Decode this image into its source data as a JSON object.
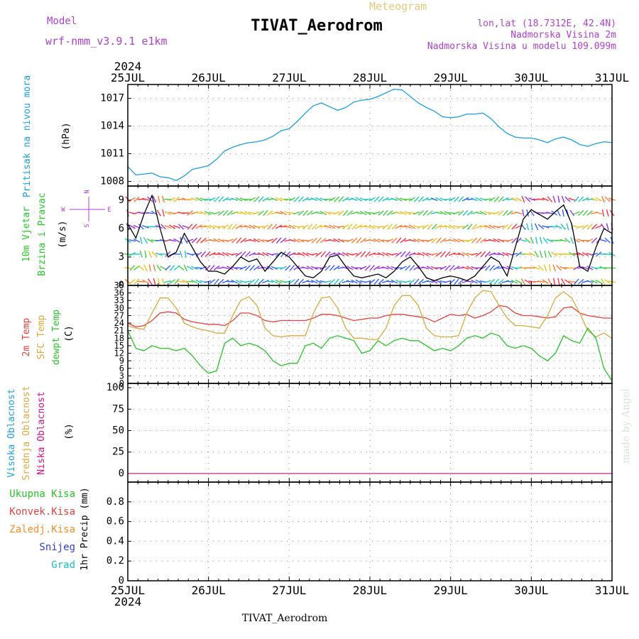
{
  "header": {
    "model_label": "Model",
    "model_name": "wrf-nmm_v3.9.1  e1km",
    "meteogram_label": "Meteogram",
    "station": "TIVAT_Aerodrom",
    "lonlat": "lon,lat (18.7312E, 42.4N)",
    "elevation": "Nadmorska Visina 2m",
    "model_elevation": "Nadmorska Visina u modelu 109.099m",
    "year": "2024",
    "footer_station": "TIVAT_Aerodrom",
    "credit": "made by Angel"
  },
  "colors": {
    "pressure": "#1e9fe0",
    "temp2m": "#e8413c",
    "sfc": "#dca83c",
    "dewpt": "#27c427",
    "wind_label": "#22cc22",
    "wind_dir": "#b040d0",
    "high_cloud": "#1ea0e0",
    "mid_cloud": "#dca83c",
    "low_cloud": "#d0108a",
    "precip_total": "#27c427",
    "precip_conv": "#e8413c",
    "precip_frz": "#ff8c28",
    "precip_snow": "#3040e0",
    "precip_grad": "#20c0c0"
  },
  "chart_data": [
    {
      "type": "line",
      "panel": "pressure",
      "ylabel_parts": [
        "Pritisak na nivou mora",
        "(hPa)"
      ],
      "x_categories": [
        "25JUL",
        "26JUL",
        "27JUL",
        "28JUL",
        "29JUL",
        "30JUL",
        "31JUL"
      ],
      "ylim": [
        1007.5,
        1018.5
      ],
      "yticks": [
        1008,
        1011,
        1014,
        1017
      ],
      "grid": true,
      "series": [
        {
          "x": [
            0,
            0.1,
            0.2,
            0.3,
            0.4,
            0.5,
            0.6,
            0.7,
            0.8,
            0.9,
            1.0,
            1.1,
            1.2,
            1.3,
            1.4,
            1.5,
            1.6,
            1.7,
            1.8,
            1.9,
            2.0,
            2.1,
            2.2,
            2.3,
            2.4,
            2.5,
            2.6,
            2.7,
            2.8,
            2.9,
            3.0,
            3.1,
            3.2,
            3.3,
            3.4,
            3.5,
            3.6,
            3.7,
            3.8,
            3.9,
            4.0,
            4.1,
            4.2,
            4.3,
            4.4,
            4.5,
            4.6,
            4.7,
            4.8,
            4.9,
            5.0,
            5.1,
            5.2,
            5.3,
            5.4,
            5.5,
            5.6,
            5.7,
            5.8,
            5.9,
            6.0
          ],
          "values": [
            1009.6,
            1008.7,
            1008.8,
            1008.9,
            1008.5,
            1008.4,
            1008.1,
            1008.6,
            1009.3,
            1009.5,
            1009.7,
            1010.4,
            1011.3,
            1011.7,
            1012.0,
            1012.2,
            1012.3,
            1012.5,
            1012.9,
            1013.5,
            1013.7,
            1014.5,
            1015.4,
            1016.2,
            1016.5,
            1016.1,
            1015.7,
            1016.0,
            1016.6,
            1016.8,
            1016.9,
            1017.2,
            1017.6,
            1018.0,
            1017.9,
            1017.2,
            1016.5,
            1016.0,
            1015.6,
            1015.0,
            1014.9,
            1015.0,
            1015.3,
            1015.3,
            1015.4,
            1014.8,
            1013.9,
            1013.2,
            1012.8,
            1012.7,
            1012.7,
            1012.5,
            1012.2,
            1012.6,
            1012.8,
            1012.5,
            1012.0,
            1011.8,
            1012.1,
            1012.3,
            1012.2
          ]
        }
      ]
    },
    {
      "type": "line",
      "panel": "wind",
      "ylabel_parts": [
        "10m Vjetar",
        "Brzina i Pravac",
        "(m/s)"
      ],
      "direction_key": {
        "n": "N",
        "s": "S",
        "w": "W",
        "e": "E"
      },
      "x_categories": [
        "25JUL",
        "26JUL",
        "27JUL",
        "28JUL",
        "29JUL",
        "30JUL",
        "31JUL"
      ],
      "ylim": [
        0,
        10.5
      ],
      "yticks": [
        0,
        3,
        6,
        9
      ],
      "grid": true,
      "series": [
        {
          "x": [
            0,
            0.1,
            0.2,
            0.3,
            0.4,
            0.5,
            0.6,
            0.7,
            0.8,
            0.9,
            1.0,
            1.1,
            1.2,
            1.3,
            1.4,
            1.5,
            1.6,
            1.7,
            1.8,
            1.9,
            2.0,
            2.1,
            2.2,
            2.3,
            2.4,
            2.5,
            2.6,
            2.7,
            2.8,
            2.9,
            3.0,
            3.1,
            3.2,
            3.3,
            3.4,
            3.5,
            3.6,
            3.7,
            3.8,
            3.9,
            4.0,
            4.1,
            4.2,
            4.3,
            4.4,
            4.5,
            4.6,
            4.7,
            4.8,
            4.9,
            5.0,
            5.1,
            5.2,
            5.3,
            5.4,
            5.5,
            5.6,
            5.7,
            5.8,
            5.9,
            6.0
          ],
          "values": [
            6.5,
            5.0,
            7.5,
            9.5,
            6.0,
            3.0,
            3.5,
            5.5,
            4.0,
            2.5,
            1.5,
            1.5,
            1.2,
            2.0,
            3.0,
            2.5,
            2.8,
            1.5,
            2.5,
            3.5,
            3.0,
            2.0,
            1.0,
            0.8,
            1.5,
            3.0,
            3.2,
            2.0,
            1.0,
            0.8,
            1.0,
            1.2,
            0.8,
            1.5,
            2.5,
            3.0,
            2.0,
            0.8,
            0.5,
            0.8,
            1.0,
            0.8,
            0.5,
            1.0,
            2.0,
            3.0,
            2.5,
            1.0,
            4.0,
            7.0,
            8.0,
            7.5,
            7.0,
            7.8,
            8.5,
            6.5,
            2.0,
            1.5,
            4.0,
            6.0,
            5.5
          ]
        }
      ]
    },
    {
      "type": "line",
      "panel": "temperature",
      "ylabel_parts": [
        "2m Temp",
        "SFC Temp",
        "dewpt Temp",
        "(C)"
      ],
      "x_categories": [
        "25JUL",
        "26JUL",
        "27JUL",
        "28JUL",
        "29JUL",
        "30JUL",
        "31JUL"
      ],
      "ylim": [
        0,
        39
      ],
      "yticks": [
        0,
        3,
        6,
        9,
        12,
        15,
        18,
        21,
        24,
        27,
        30,
        33,
        36,
        39
      ],
      "grid": true,
      "series": [
        {
          "name": "2m Temp",
          "x": [
            0,
            0.1,
            0.2,
            0.3,
            0.4,
            0.5,
            0.6,
            0.7,
            0.8,
            0.9,
            1.0,
            1.1,
            1.2,
            1.3,
            1.4,
            1.5,
            1.6,
            1.7,
            1.8,
            1.9,
            2.0,
            2.1,
            2.2,
            2.3,
            2.4,
            2.5,
            2.6,
            2.7,
            2.8,
            2.9,
            3.0,
            3.1,
            3.2,
            3.3,
            3.4,
            3.5,
            3.6,
            3.7,
            3.8,
            3.9,
            4.0,
            4.1,
            4.2,
            4.3,
            4.4,
            4.5,
            4.6,
            4.7,
            4.8,
            4.9,
            5.0,
            5.1,
            5.2,
            5.3,
            5.4,
            5.5,
            5.6,
            5.7,
            5.8,
            5.9,
            6.0
          ],
          "values": [
            24,
            22.5,
            23,
            25,
            28,
            28.5,
            28,
            25.5,
            24.5,
            24,
            23.5,
            23.5,
            23,
            25,
            28,
            28,
            27,
            25,
            24.5,
            25,
            25,
            25,
            25,
            26,
            27.5,
            27.5,
            27,
            26,
            25,
            25.5,
            26,
            26,
            27,
            27.5,
            27.5,
            27,
            26.5,
            26,
            24.5,
            26,
            27.5,
            27,
            27.5,
            26,
            27,
            28.5,
            31,
            30.5,
            28,
            27,
            27,
            26.5,
            26,
            26.5,
            30,
            30.5,
            28,
            27,
            26.5,
            26,
            26
          ]
        },
        {
          "name": "SFC Temp",
          "x": [
            0,
            0.1,
            0.2,
            0.3,
            0.4,
            0.5,
            0.6,
            0.7,
            0.8,
            0.9,
            1.0,
            1.1,
            1.2,
            1.3,
            1.4,
            1.5,
            1.6,
            1.7,
            1.8,
            1.9,
            2.0,
            2.1,
            2.2,
            2.3,
            2.4,
            2.5,
            2.6,
            2.7,
            2.8,
            2.9,
            3.0,
            3.1,
            3.2,
            3.3,
            3.4,
            3.5,
            3.6,
            3.7,
            3.8,
            3.9,
            4.0,
            4.1,
            4.2,
            4.3,
            4.4,
            4.5,
            4.6,
            4.7,
            4.8,
            4.9,
            5.0,
            5.1,
            5.2,
            5.3,
            5.4,
            5.5,
            5.6,
            5.7,
            5.8,
            5.9,
            6.0
          ],
          "values": [
            23,
            22,
            21.5,
            28,
            34,
            34,
            30,
            24,
            22.5,
            21.5,
            21,
            20,
            20,
            27,
            33,
            34.5,
            31,
            22,
            19,
            18.5,
            19,
            19,
            19,
            28,
            34,
            34.5,
            30,
            22,
            18,
            18,
            17.5,
            17.5,
            22,
            31,
            35,
            35,
            31,
            22,
            19,
            18.5,
            18.5,
            19,
            28,
            34,
            37,
            36.5,
            31,
            26,
            23,
            23,
            22.5,
            22,
            27,
            34,
            36.5,
            34,
            28,
            21,
            18.5,
            20,
            18
          ]
        },
        {
          "name": "dewpt Temp",
          "x": [
            0,
            0.1,
            0.2,
            0.3,
            0.4,
            0.5,
            0.6,
            0.7,
            0.8,
            0.9,
            1.0,
            1.1,
            1.2,
            1.3,
            1.4,
            1.5,
            1.6,
            1.7,
            1.8,
            1.9,
            2.0,
            2.1,
            2.2,
            2.3,
            2.4,
            2.5,
            2.6,
            2.7,
            2.8,
            2.9,
            3.0,
            3.1,
            3.2,
            3.3,
            3.4,
            3.5,
            3.6,
            3.7,
            3.8,
            3.9,
            4.0,
            4.1,
            4.2,
            4.3,
            4.4,
            4.5,
            4.6,
            4.7,
            4.8,
            4.9,
            5.0,
            5.1,
            5.2,
            5.3,
            5.4,
            5.5,
            5.6,
            5.7,
            5.8,
            5.9,
            6.0
          ],
          "values": [
            21,
            14,
            13,
            15,
            14,
            14,
            13,
            14,
            11,
            7,
            4,
            5,
            16,
            18,
            15,
            16,
            15,
            13,
            9,
            7,
            8,
            8,
            15,
            16,
            14,
            18,
            19,
            18,
            17,
            12,
            13,
            17,
            15,
            17,
            18,
            17,
            17,
            15,
            13,
            14,
            13,
            15,
            18,
            19,
            18,
            20,
            19,
            15,
            14,
            15,
            14,
            11,
            9,
            12,
            19,
            17,
            16,
            22,
            18,
            6,
            1
          ]
        }
      ]
    },
    {
      "type": "line",
      "panel": "cloud",
      "ylabel_parts": [
        "Visoka Oblacnost",
        "Srednja Oblacnost",
        "Niska Oblacnost",
        "(%)"
      ],
      "x_categories": [
        "25JUL",
        "26JUL",
        "27JUL",
        "28JUL",
        "29JUL",
        "30JUL",
        "31JUL"
      ],
      "ylim": [
        -10,
        105
      ],
      "yticks": [
        0,
        25,
        50,
        75,
        100
      ],
      "grid": true,
      "series": [
        {
          "name": "Visoka Oblacnost",
          "x": [
            0,
            6
          ],
          "values": [
            0,
            0
          ]
        },
        {
          "name": "Srednja Oblacnost",
          "x": [
            0,
            6
          ],
          "values": [
            0,
            0
          ]
        },
        {
          "name": "Niska Oblacnost",
          "x": [
            0,
            6
          ],
          "values": [
            0,
            0
          ]
        }
      ]
    },
    {
      "type": "line",
      "panel": "precip",
      "ylabel": "1hr Precip (mm)",
      "legend": [
        "Ukupna Kisa",
        "Konvek.Kisa",
        "Zaledj.Kisa",
        "Snijeg",
        "Grad"
      ],
      "x_categories": [
        "25JUL",
        "26JUL",
        "27JUL",
        "28JUL",
        "29JUL",
        "30JUL",
        "31JUL"
      ],
      "ylim": [
        0,
        1
      ],
      "yticks": [
        0,
        0.2,
        0.4,
        0.6,
        0.8
      ],
      "ytick_labels": [
        "0",
        "0.2",
        "0.4",
        "0.6",
        "0.8"
      ],
      "grid": true,
      "series": [
        {
          "name": "Ukupna Kisa",
          "x": [
            0,
            6
          ],
          "values": [
            0,
            0
          ]
        }
      ]
    }
  ]
}
